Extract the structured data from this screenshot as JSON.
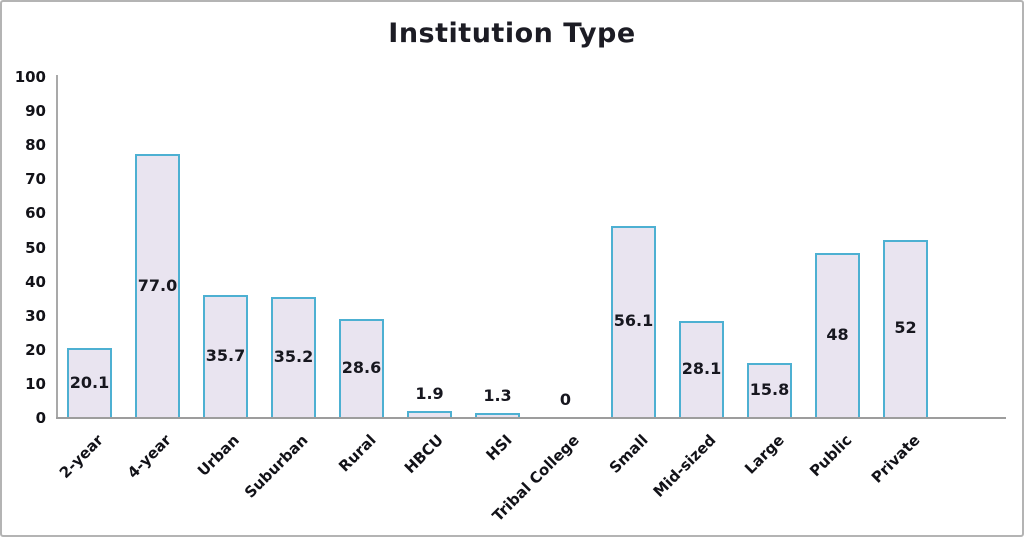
{
  "chart_data": {
    "type": "bar",
    "title": "Institution Type",
    "categories": [
      "2-year",
      "4-year",
      "Urban",
      "Suburban",
      "Rural",
      "HBCU",
      "HSI",
      "Tribal College",
      "Small",
      "Mid-sized",
      "Large",
      "Public",
      "Private"
    ],
    "values": [
      20.1,
      77.0,
      35.7,
      35.2,
      28.6,
      1.9,
      1.3,
      0,
      56.1,
      28.1,
      15.8,
      48,
      52
    ],
    "value_labels": [
      "20.1",
      "77.0",
      "35.7",
      "35.2",
      "28.6",
      "1.9",
      "1.3",
      "0",
      "56.1",
      "28.1",
      "15.8",
      "48",
      "52"
    ],
    "xlabel": "",
    "ylabel": "",
    "ylim": [
      0,
      100
    ],
    "yticks": [
      0,
      10,
      20,
      30,
      40,
      50,
      60,
      70,
      80,
      90,
      100
    ],
    "grid": false,
    "legend": null,
    "x_tick_rotation_deg": 45,
    "colors": {
      "bar_fill": "#e9e4f0",
      "bar_border": "#4db0d2",
      "axis_line": "#a0a0a0",
      "text": "#17171f",
      "background": "#ffffff",
      "figure_border": "#b4b4b4"
    }
  }
}
